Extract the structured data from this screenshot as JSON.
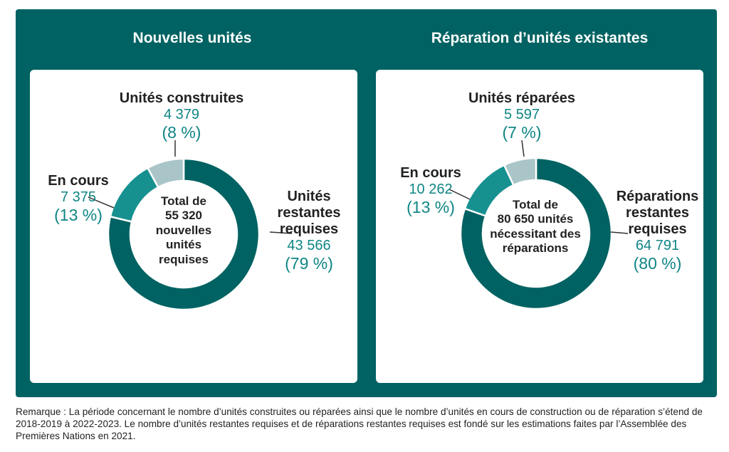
{
  "colors": {
    "frame": "#006262",
    "slice_remaining": "#006262",
    "slice_in_progress": "#179090",
    "slice_done": "#a9c5c8",
    "value_text": "#108585"
  },
  "note": "Remarque : La période concernant le nombre d’unités construites ou réparées ainsi que le nombre d’unités en cours de construction ou de réparation s’étend de 2018-2019 à 2022-2023. Le nombre d’unités restantes requises et de réparations restantes requises est fondé sur les estimations faites par l’Assemblée des Premières Nations en 2021.",
  "chart_data": [
    {
      "type": "pie",
      "title": "Nouvelles unités",
      "center_text": [
        "Total de",
        "55 320",
        "nouvelles",
        "unités",
        "requises"
      ],
      "slices": [
        {
          "name_lines": [
            "Unités",
            "restantes",
            "requises"
          ],
          "value": 43566,
          "value_label": "43 566",
          "percent_label": "(79 %)"
        },
        {
          "name_lines": [
            "En cours"
          ],
          "value": 7375,
          "value_label": "7 375",
          "percent_label": "(13 %)"
        },
        {
          "name_lines": [
            "Unités construites"
          ],
          "value": 4379,
          "value_label": "4 379",
          "percent_label": "(8 %)"
        }
      ]
    },
    {
      "type": "pie",
      "title": "Réparation d’unités existantes",
      "center_text": [
        "Total de",
        "80 650 unités",
        "nécessitant des",
        "réparations"
      ],
      "slices": [
        {
          "name_lines": [
            "Réparations",
            "restantes",
            "requises"
          ],
          "value": 64791,
          "value_label": "64 791",
          "percent_label": "(80 %)"
        },
        {
          "name_lines": [
            "En cours"
          ],
          "value": 10262,
          "value_label": "10 262",
          "percent_label": "(13 %)"
        },
        {
          "name_lines": [
            "Unités réparées"
          ],
          "value": 5597,
          "value_label": "5 597",
          "percent_label": "(7 %)"
        }
      ]
    }
  ]
}
